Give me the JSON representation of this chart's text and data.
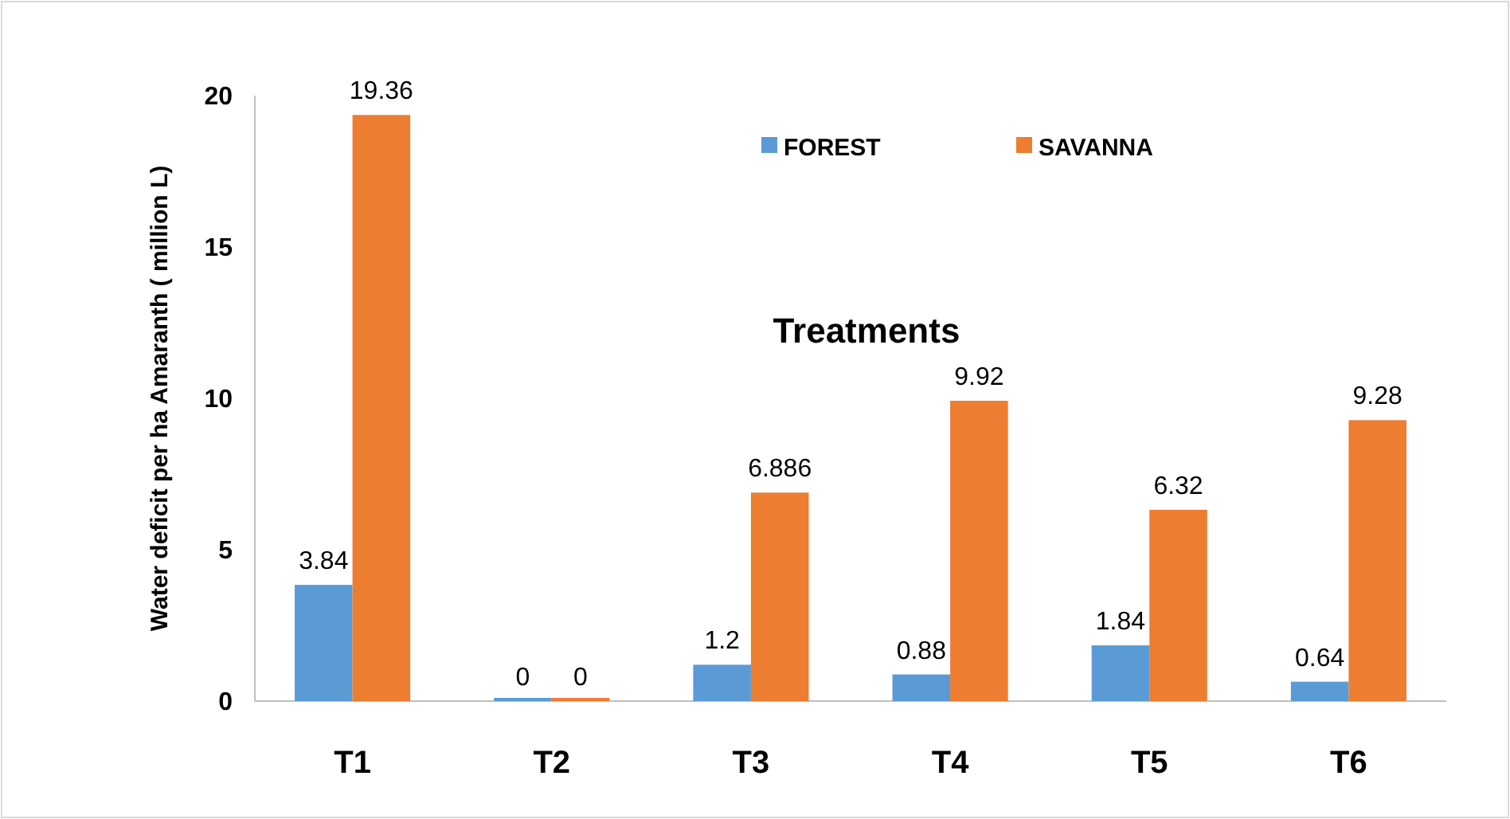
{
  "chart_data": {
    "type": "bar",
    "xlabel": "Treatments",
    "ylabel": "Water deficit per ha Amaranth ( million L)",
    "categories": [
      "T1",
      "T2",
      "T3",
      "T4",
      "T5",
      "T6"
    ],
    "series": [
      {
        "name": "FOREST",
        "color": "#5b9bd5",
        "values": [
          3.84,
          0,
          1.2,
          0.88,
          1.84,
          0.64
        ]
      },
      {
        "name": "SAVANNA",
        "color": "#ed7d31",
        "values": [
          19.36,
          0,
          6.886,
          9.92,
          6.32,
          9.28
        ]
      }
    ],
    "ylim": [
      0,
      20
    ],
    "yticks": [
      0,
      5,
      10,
      15,
      20
    ],
    "grid": false,
    "legend": "top",
    "data_labels": true
  }
}
